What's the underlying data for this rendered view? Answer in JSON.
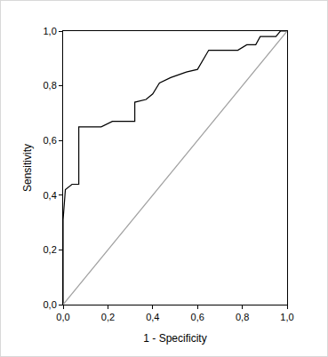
{
  "chart_data": {
    "type": "line",
    "x_label": "1 - Specificity",
    "y_label": "Sensitivity",
    "series": [
      {
        "color": "#000000",
        "line_style": "solid",
        "x": [
          0,
          0,
          0.01,
          0.04,
          0.07,
          0.07,
          0.17,
          0.22,
          0.32,
          0.32,
          0.37,
          0.4,
          0.43,
          0.48,
          0.55,
          0.6,
          0.65,
          0.75,
          0.78,
          0.82,
          0.86,
          0.88,
          0.95,
          0.97,
          1.0
        ],
        "values": [
          0,
          0.31,
          0.42,
          0.44,
          0.44,
          0.65,
          0.65,
          0.67,
          0.67,
          0.74,
          0.75,
          0.77,
          0.81,
          0.83,
          0.85,
          0.86,
          0.93,
          0.93,
          0.93,
          0.95,
          0.95,
          0.98,
          0.98,
          1.0,
          1.0
        ]
      },
      {
        "color": "#a0a0a0",
        "line_style": "solid",
        "x": [
          0,
          1.0
        ],
        "values": [
          0,
          1.0
        ]
      }
    ],
    "xlim": [
      0,
      1.0
    ],
    "ylim": [
      0,
      1.0
    ],
    "xticks": [
      {
        "value": 0,
        "label": "0,0"
      },
      {
        "value": 0.2,
        "label": "0,2"
      },
      {
        "value": 0.4,
        "label": "0,4"
      },
      {
        "value": 0.6,
        "label": "0,6"
      },
      {
        "value": 0.8,
        "label": "0,8"
      },
      {
        "value": 1.0,
        "label": "1,0"
      }
    ],
    "yticks": [
      {
        "value": 0,
        "label": "0,0"
      },
      {
        "value": 0.2,
        "label": "0,2"
      },
      {
        "value": 0.4,
        "label": "0,4"
      },
      {
        "value": 0.6,
        "label": "0,6"
      },
      {
        "value": 0.8,
        "label": "0,8"
      },
      {
        "value": 1.0,
        "label": "1,0"
      }
    ],
    "grid": false
  }
}
